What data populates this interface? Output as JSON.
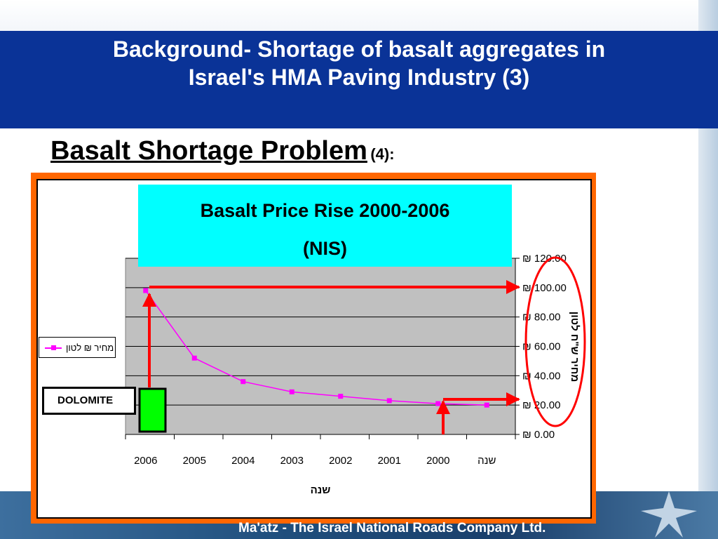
{
  "slide": {
    "title_line1": "Background- Shortage of basalt aggregates in",
    "title_line2": "Israel's HMA Paving Industry (3)",
    "subtitle_main": "Basalt Shortage Problem",
    "subtitle_suffix": "(4):",
    "footer": "Ma'atz - The Israel  National Roads Company Ltd.",
    "dolomite_label": "DOLOMITE"
  },
  "chart_data": {
    "type": "line",
    "title_line1": "Basalt Price Rise 2000-2006",
    "title_line2": "(NIS)",
    "categories": [
      "2006",
      "2005",
      "2004",
      "2003",
      "2002",
      "2001",
      "2000",
      "שנה"
    ],
    "series": [
      {
        "name": "מחיר ₪ לטון",
        "values": [
          98,
          52,
          36,
          29,
          26,
          23,
          21,
          20
        ]
      }
    ],
    "xlabel": "שנה",
    "ylabel": "מחיר ש\"ח לטון",
    "ylim": [
      0,
      120
    ],
    "y_ticks": [
      "₪ 0.00",
      "₪ 20.00",
      "₪ 40.00",
      "₪ 60.00",
      "₪ 80.00",
      "₪ 100.00",
      "₪ 120.00"
    ],
    "grid": true,
    "legend": "left",
    "colors": {
      "series": "#ff00ff",
      "plot_bg": "#c0c0c0",
      "annotation": "#ff0000",
      "dolomite": "#00ff00"
    }
  }
}
